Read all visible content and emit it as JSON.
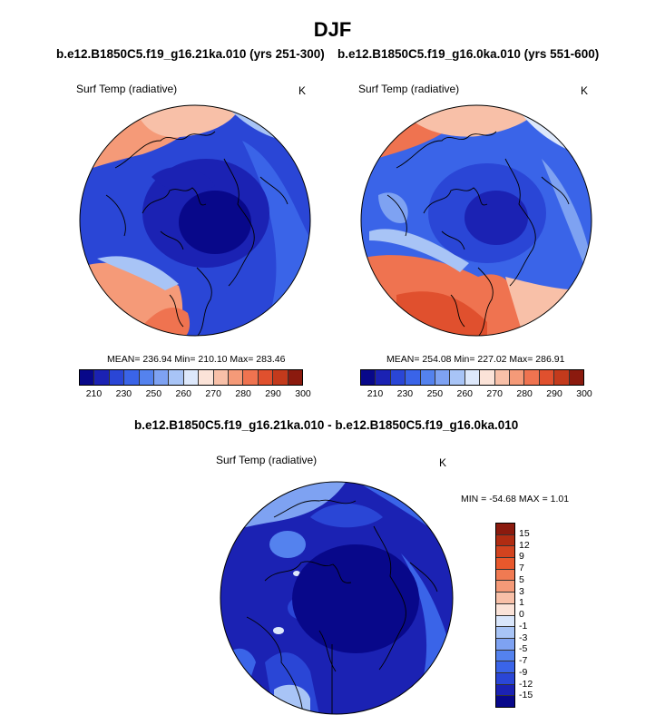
{
  "figure": {
    "title": "DJF",
    "subtitle_left": "b.e12.B1850C5.f19_g16.21ka.010 (yrs 251-300)",
    "subtitle_right": "b.e12.B1850C5.f19_g16.0ka.010 (yrs 551-600)",
    "subtitle_diff": "b.e12.B1850C5.f19_g16.21ka.010 - b.e12.B1850C5.f19_g16.0ka.010"
  },
  "panels": {
    "left": {
      "label": "Surf Temp (radiative)",
      "units": "K",
      "stats": "MEAN= 236.94  Min= 210.10  Max= 283.46"
    },
    "right": {
      "label": "Surf Temp (radiative)",
      "units": "K",
      "stats": "MEAN= 254.08  Min= 227.02  Max= 286.91"
    },
    "diff": {
      "label": "Surf Temp (radiative)",
      "units": "K",
      "stats": "MIN = -54.68 MAX =   1.01"
    }
  },
  "colorbar_abs": {
    "labels": [
      "210",
      "230",
      "250",
      "260",
      "270",
      "280",
      "290",
      "300"
    ],
    "colors": [
      "#08088a",
      "#1b22b3",
      "#2a46d6",
      "#3a64e8",
      "#5482ee",
      "#7ea2f2",
      "#a8c4f6",
      "#dde8fb",
      "#fbe3d8",
      "#f8c0a8",
      "#f59a78",
      "#ef7350",
      "#e0502e",
      "#c33a1c",
      "#8b1a0e"
    ]
  },
  "colorbar_diff": {
    "labels": [
      "15",
      "12",
      "9",
      "7",
      "5",
      "3",
      "1",
      "0",
      "-1",
      "-3",
      "-5",
      "-7",
      "-9",
      "-12",
      "-15"
    ],
    "colors": [
      "#8b1a0e",
      "#b02c12",
      "#d2431f",
      "#e8582c",
      "#f07a52",
      "#f59a78",
      "#f8c0a8",
      "#fbe3d8",
      "#d9e6fb",
      "#a8c4f6",
      "#7ea2f2",
      "#5482ee",
      "#3a64e8",
      "#2a46d6",
      "#1b22b3",
      "#08088a"
    ]
  }
}
